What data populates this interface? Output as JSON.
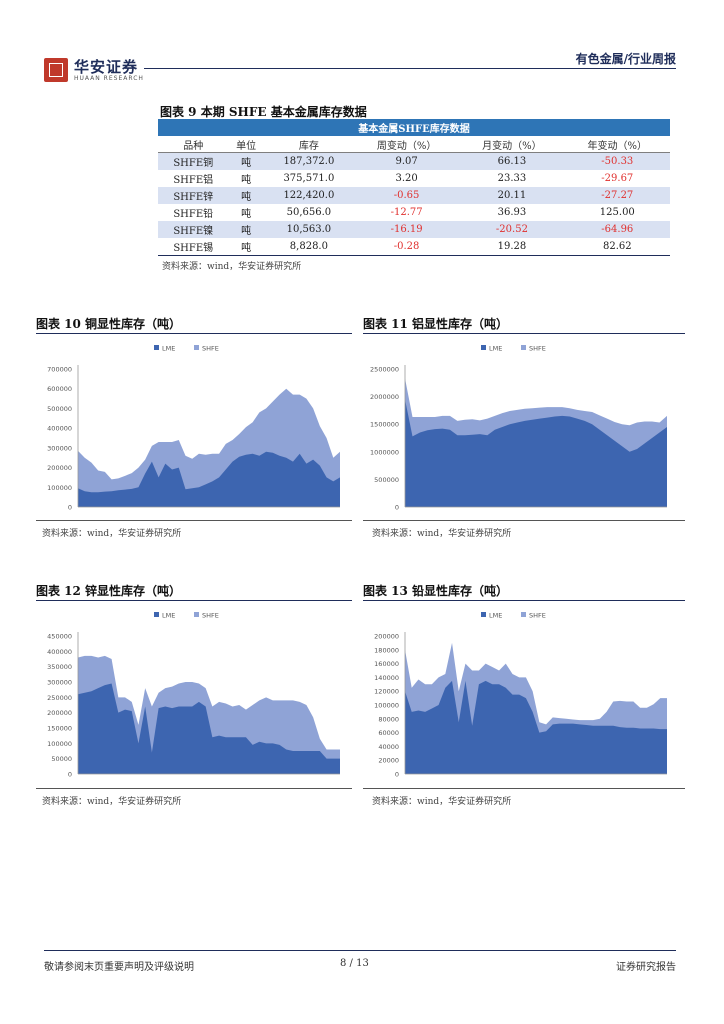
{
  "header": {
    "logo_cn": "华安证券",
    "logo_en": "HUAAN RESEARCH",
    "category": "有色金属/行业周报"
  },
  "table": {
    "title": "图表 9 本期 SHFE 基本金属库存数据",
    "band": "基本金属SHFE库存数据",
    "columns": [
      "品种",
      "单位",
      "库存",
      "周变动（%）",
      "月变动（%）",
      "年变动（%）"
    ],
    "rows": [
      {
        "name": "SHFE铜",
        "unit": "吨",
        "stock": "187,372.0",
        "week": "9.07",
        "month": "66.13",
        "year": "-50.33"
      },
      {
        "name": "SHFE铝",
        "unit": "吨",
        "stock": "375,571.0",
        "week": "3.20",
        "month": "23.33",
        "year": "-29.67"
      },
      {
        "name": "SHFE锌",
        "unit": "吨",
        "stock": "122,420.0",
        "week": "-0.65",
        "month": "20.11",
        "year": "-27.27"
      },
      {
        "name": "SHFE铅",
        "unit": "吨",
        "stock": "50,656.0",
        "week": "-12.77",
        "month": "36.93",
        "year": "125.00"
      },
      {
        "name": "SHFE镍",
        "unit": "吨",
        "stock": "10,563.0",
        "week": "-16.19",
        "month": "-20.52",
        "year": "-64.96"
      },
      {
        "name": "SHFE锡",
        "unit": "吨",
        "stock": "8,828.0",
        "week": "-0.28",
        "month": "19.28",
        "year": "82.62"
      }
    ],
    "source": "资料来源：wind，华安证券研究所"
  },
  "chart_data": [
    {
      "type": "area",
      "title": "图表 10 铜显性库存（吨）",
      "source": "资料来源：wind，华安证券研究所",
      "legend": [
        "LME",
        "SHFE"
      ],
      "colors": {
        "LME": "#3d65b0",
        "SHFE": "#8fa3d6"
      },
      "ylim": [
        0,
        700000
      ],
      "yticks": [
        0,
        100000,
        200000,
        300000,
        400000,
        500000,
        600000,
        700000
      ],
      "series": [
        {
          "name": "LME",
          "values": [
            95000,
            80000,
            75000,
            75000,
            78000,
            80000,
            85000,
            88000,
            92000,
            100000,
            170000,
            230000,
            150000,
            220000,
            190000,
            200000,
            90000,
            95000,
            100000,
            115000,
            130000,
            150000,
            190000,
            230000,
            255000,
            265000,
            270000,
            260000,
            280000,
            275000,
            260000,
            250000,
            230000,
            270000,
            220000,
            240000,
            210000,
            150000,
            130000,
            150000
          ]
        },
        {
          "name": "SHFE",
          "values": [
            190000,
            170000,
            150000,
            110000,
            100000,
            60000,
            60000,
            70000,
            80000,
            100000,
            70000,
            80000,
            180000,
            110000,
            140000,
            140000,
            170000,
            150000,
            170000,
            150000,
            140000,
            120000,
            130000,
            110000,
            115000,
            140000,
            160000,
            220000,
            220000,
            260000,
            310000,
            350000,
            340000,
            300000,
            330000,
            260000,
            200000,
            200000,
            120000,
            130000
          ]
        }
      ]
    },
    {
      "type": "area",
      "title": "图表 11 铝显性库存（吨）",
      "source": "资料来源：wind，华安证券研究所",
      "legend": [
        "LME",
        "SHFE"
      ],
      "colors": {
        "LME": "#3d65b0",
        "SHFE": "#8fa3d6"
      },
      "ylim": [
        0,
        2500000
      ],
      "yticks": [
        0,
        500000,
        1000000,
        1500000,
        2000000,
        2500000
      ],
      "series": [
        {
          "name": "LME",
          "values": [
            1950000,
            1280000,
            1350000,
            1390000,
            1410000,
            1420000,
            1400000,
            1300000,
            1300000,
            1310000,
            1320000,
            1300000,
            1400000,
            1450000,
            1500000,
            1530000,
            1560000,
            1580000,
            1600000,
            1620000,
            1640000,
            1650000,
            1640000,
            1600000,
            1560000,
            1500000,
            1400000,
            1300000,
            1200000,
            1100000,
            1000000,
            1050000,
            1150000,
            1250000,
            1350000,
            1450000
          ]
        },
        {
          "name": "SHFE",
          "values": [
            380000,
            350000,
            280000,
            240000,
            220000,
            230000,
            250000,
            260000,
            280000,
            280000,
            250000,
            300000,
            250000,
            250000,
            240000,
            230000,
            220000,
            210000,
            200000,
            190000,
            170000,
            160000,
            150000,
            160000,
            180000,
            220000,
            260000,
            300000,
            340000,
            400000,
            480000,
            480000,
            400000,
            300000,
            180000,
            200000
          ]
        }
      ]
    },
    {
      "type": "area",
      "title": "图表 12 锌显性库存（吨）",
      "source": "资料来源：wind，华安证券研究所",
      "legend": [
        "LME",
        "SHFE"
      ],
      "colors": {
        "LME": "#3d65b0",
        "SHFE": "#8fa3d6"
      },
      "ylim": [
        0,
        450000
      ],
      "yticks": [
        0,
        50000,
        100000,
        150000,
        200000,
        250000,
        300000,
        350000,
        400000,
        450000
      ],
      "series": [
        {
          "name": "LME",
          "values": [
            260000,
            265000,
            270000,
            280000,
            290000,
            295000,
            200000,
            210000,
            205000,
            100000,
            220000,
            70000,
            215000,
            220000,
            215000,
            220000,
            220000,
            220000,
            235000,
            220000,
            120000,
            125000,
            120000,
            120000,
            120000,
            120000,
            95000,
            105000,
            100000,
            100000,
            95000,
            80000,
            75000,
            75000,
            75000,
            75000,
            75000,
            50000,
            50000,
            50000
          ]
        },
        {
          "name": "SHFE",
          "values": [
            120000,
            120000,
            115000,
            100000,
            95000,
            80000,
            50000,
            40000,
            30000,
            60000,
            60000,
            150000,
            50000,
            60000,
            70000,
            75000,
            80000,
            80000,
            60000,
            60000,
            100000,
            110000,
            110000,
            100000,
            105000,
            90000,
            130000,
            135000,
            150000,
            140000,
            145000,
            160000,
            165000,
            160000,
            150000,
            110000,
            40000,
            30000,
            30000,
            30000
          ]
        }
      ]
    },
    {
      "type": "area",
      "title": "图表 13 铅显性库存（吨）",
      "source": "资料来源：wind，华安证券研究所",
      "legend": [
        "LME",
        "SHFE"
      ],
      "colors": {
        "LME": "#3d65b0",
        "SHFE": "#8fa3d6"
      },
      "ylim": [
        0,
        200000
      ],
      "yticks": [
        0,
        20000,
        40000,
        60000,
        80000,
        100000,
        120000,
        140000,
        160000,
        180000,
        200000
      ],
      "series": [
        {
          "name": "LME",
          "values": [
            120000,
            90000,
            92000,
            90000,
            95000,
            100000,
            125000,
            135000,
            75000,
            135000,
            70000,
            130000,
            135000,
            130000,
            130000,
            125000,
            115000,
            115000,
            110000,
            90000,
            60000,
            62000,
            72000,
            73000,
            73000,
            73000,
            72000,
            71000,
            70000,
            70000,
            70000,
            70000,
            68000,
            67000,
            67000,
            66000,
            66000,
            66000,
            65000,
            65000
          ]
        },
        {
          "name": "SHFE",
          "values": [
            60000,
            35000,
            45000,
            40000,
            35000,
            40000,
            20000,
            55000,
            45000,
            25000,
            80000,
            20000,
            25000,
            25000,
            20000,
            35000,
            30000,
            25000,
            30000,
            30000,
            15000,
            10000,
            10000,
            8000,
            7000,
            6000,
            6000,
            7000,
            8000,
            10000,
            20000,
            35000,
            38000,
            38000,
            38000,
            30000,
            30000,
            35000,
            45000,
            45000
          ]
        }
      ]
    }
  ],
  "footer": {
    "left": "敬请参阅末页重要声明及评级说明",
    "page": "8 / 13",
    "right": "证券研究报告"
  }
}
